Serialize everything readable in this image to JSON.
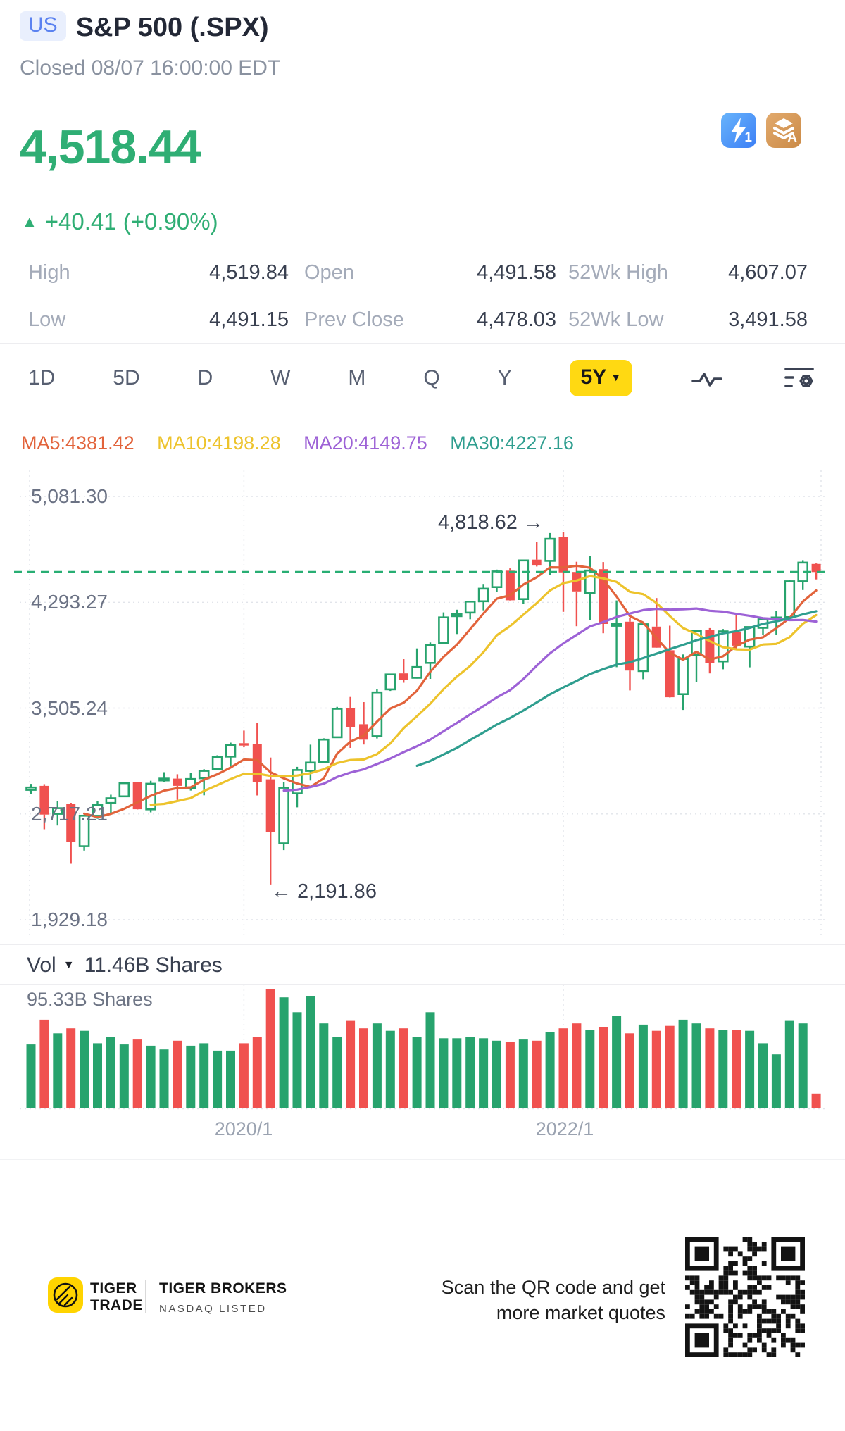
{
  "header": {
    "market_badge": "US",
    "title": "S&P 500 (.SPX)",
    "status_line": "Closed 08/07 16:00:00 EDT"
  },
  "quote": {
    "last": "4,518.44",
    "change_direction": "▲",
    "change": "+40.41 (+0.90%)",
    "stats": [
      {
        "label": "High",
        "value": "4,519.84"
      },
      {
        "label": "Open",
        "value": "4,491.58"
      },
      {
        "label": "52Wk High",
        "value": "4,607.07"
      },
      {
        "label": "Low",
        "value": "4,491.15"
      },
      {
        "label": "Prev Close",
        "value": "4,478.03"
      },
      {
        "label": "52Wk Low",
        "value": "3,491.58"
      }
    ]
  },
  "icons": {
    "flash_badge": "1",
    "layers_badge": "A"
  },
  "toolbar": {
    "ranges": [
      "1D",
      "5D",
      "D",
      "W",
      "M",
      "Q",
      "Y"
    ],
    "selected_range": "5Y",
    "selected_caret": "▼"
  },
  "volume_header": {
    "label": "Vol",
    "caret": "▼",
    "value": "11.46B Shares"
  },
  "volume_scale_label": "95.33B Shares",
  "chart_data": {
    "type": "candlestick+volume",
    "symbol": "S&P 500 (.SPX)",
    "interval": "monthly",
    "range": "5Y",
    "start_month": "2018/09",
    "end_month": "2023/08",
    "current_price": 4518.44,
    "y_axis": {
      "ticks": [
        5081.3,
        4293.27,
        3505.24,
        2717.21,
        1929.18
      ],
      "tick_labels": [
        "5,081.30",
        "4,293.27",
        "3,505.24",
        "2,717.21",
        "1,929.18"
      ]
    },
    "x_axis": {
      "labels": [
        {
          "text": "2020/1",
          "candle_index": 16
        },
        {
          "text": "2022/1",
          "candle_index": 40
        }
      ]
    },
    "annotations": {
      "high": {
        "text": "4,818.62 →",
        "price": 4818.62
      },
      "low": {
        "text": "← 2,191.86",
        "price": 2191.86
      }
    },
    "moving_averages": [
      {
        "label": "MA5:4381.42",
        "period": 5,
        "value": 4381.42,
        "color": "#e2633b"
      },
      {
        "label": "MA10:4198.28",
        "period": 10,
        "value": 4198.28,
        "color": "#edc32c"
      },
      {
        "label": "MA20:4149.75",
        "period": 20,
        "value": 4149.75,
        "color": "#9d62d6"
      },
      {
        "label": "MA30:4227.16",
        "period": 30,
        "value": 4227.16,
        "color": "#2f9e8f"
      }
    ],
    "colors": {
      "up": "#27a36d",
      "down": "#f0514f",
      "current_price_line": "#28ae73"
    },
    "candles": [
      [
        2896,
        2941,
        2864,
        2914
      ],
      [
        2926,
        2939,
        2603,
        2712
      ],
      [
        2718,
        2815,
        2631,
        2760
      ],
      [
        2790,
        2800,
        2346,
        2507
      ],
      [
        2477,
        2708,
        2444,
        2704
      ],
      [
        2703,
        2813,
        2681,
        2784
      ],
      [
        2799,
        2860,
        2722,
        2834
      ],
      [
        2848,
        2948,
        2848,
        2946
      ],
      [
        2952,
        2954,
        2750,
        2752
      ],
      [
        2751,
        2964,
        2729,
        2942
      ],
      [
        2971,
        3028,
        2952,
        2980
      ],
      [
        2980,
        3013,
        2822,
        2926
      ],
      [
        2909,
        3022,
        2891,
        2977
      ],
      [
        2983,
        3050,
        2856,
        3038
      ],
      [
        3051,
        3154,
        3051,
        3141
      ],
      [
        3144,
        3248,
        3070,
        3231
      ],
      [
        3244,
        3338,
        3214,
        3226
      ],
      [
        3236,
        3393,
        2855,
        2954
      ],
      [
        2975,
        3137,
        2191.86,
        2585
      ],
      [
        2498,
        2955,
        2448,
        2912
      ],
      [
        2870,
        3068,
        2766,
        3044
      ],
      [
        3038,
        3233,
        2966,
        3100
      ],
      [
        3106,
        3280,
        3102,
        3271
      ],
      [
        3288,
        3514,
        3284,
        3500
      ],
      [
        3508,
        3588,
        3209,
        3363
      ],
      [
        3385,
        3550,
        3234,
        3270
      ],
      [
        3296,
        3646,
        3279,
        3622
      ],
      [
        3645,
        3760,
        3633,
        3756
      ],
      [
        3764,
        3870,
        3694,
        3714
      ],
      [
        3731,
        3950,
        3725,
        3811
      ],
      [
        3842,
        3994,
        3723,
        3973
      ],
      [
        3992,
        4218,
        3992,
        4181
      ],
      [
        4191,
        4238,
        4057,
        4204
      ],
      [
        4216,
        4302,
        4167,
        4298
      ],
      [
        4301,
        4430,
        4233,
        4395
      ],
      [
        4406,
        4537,
        4368,
        4523
      ],
      [
        4529,
        4546,
        4306,
        4308
      ],
      [
        4317,
        4608,
        4279,
        4605
      ],
      [
        4611,
        4744,
        4560,
        4567
      ],
      [
        4602,
        4808.93,
        4495,
        4766
      ],
      [
        4778,
        4818.62,
        4222,
        4516
      ],
      [
        4519,
        4595,
        4115,
        4374
      ],
      [
        4364,
        4637,
        4158,
        4530
      ],
      [
        4540,
        4593,
        4063,
        4132
      ],
      [
        4130,
        4307,
        3810,
        4132
      ],
      [
        4149,
        4177,
        3637,
        3785
      ],
      [
        3781,
        4140,
        3721,
        4130
      ],
      [
        4112,
        4325,
        3954,
        3955
      ],
      [
        3936,
        4119,
        3584,
        3586
      ],
      [
        3609,
        3905,
        3491.58,
        3872
      ],
      [
        3901,
        4080,
        3698,
        4080
      ],
      [
        4087,
        4101,
        3764,
        3840
      ],
      [
        3853,
        4094,
        3794,
        4077
      ],
      [
        4070,
        4195,
        3943,
        3970
      ],
      [
        3963,
        4110,
        3809,
        4109
      ],
      [
        4103,
        4170,
        4049,
        4169
      ],
      [
        4167,
        4231,
        4048,
        4180
      ],
      [
        4183,
        4458,
        4171,
        4450
      ],
      [
        4450,
        4607.07,
        4385,
        4589
      ],
      [
        4579,
        4584,
        4464,
        4518.44
      ]
    ],
    "volumes_b_shares": [
      51,
      71,
      60,
      64,
      62,
      52,
      57,
      51,
      55,
      50,
      47,
      54,
      50,
      52,
      46,
      46,
      52,
      57,
      95.33,
      89,
      77,
      90,
      68,
      57,
      70,
      64,
      68,
      62,
      64,
      57,
      77,
      56,
      56,
      57,
      56,
      54,
      53,
      55,
      54,
      61,
      64,
      68,
      63,
      65,
      74,
      60,
      67,
      62,
      66,
      71,
      68,
      64,
      63,
      63,
      62,
      52,
      43,
      70,
      68,
      11.46
    ],
    "volume_scale_max_b": 95.33,
    "latest_volume_b": 11.46
  },
  "footer": {
    "brand_line1": "TIGER",
    "brand_line2": "TRADE",
    "company": "TIGER BROKERS",
    "listed": "NASDAQ LISTED",
    "scan_line1": "Scan the QR code and get",
    "scan_line2": "more market quotes"
  }
}
